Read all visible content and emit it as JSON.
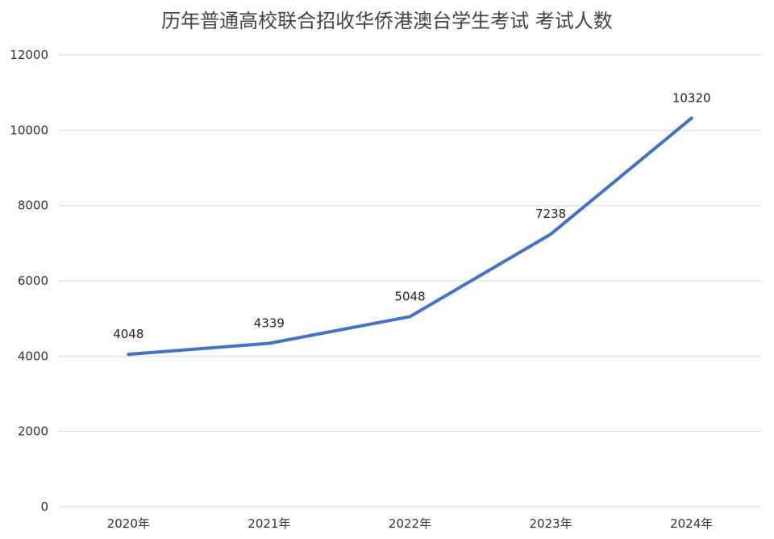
{
  "chart_data": {
    "type": "line",
    "title": "历年普通高校联合招收华侨港澳台学生考试 考试人数",
    "categories": [
      "2020年",
      "2021年",
      "2022年",
      "2023年",
      "2024年"
    ],
    "series": [
      {
        "name": "",
        "values": [
          4048,
          4339,
          5048,
          7238,
          10320
        ],
        "color": "#4472c4"
      }
    ],
    "data_labels": [
      "4048",
      "4339",
      "5048",
      "7238",
      "10320"
    ],
    "y_ticks": [
      "0",
      "2000",
      "4000",
      "6000",
      "8000",
      "10000",
      "12000"
    ],
    "ylim": [
      0,
      12000
    ],
    "grid": true,
    "legend": "none",
    "xlabel": "",
    "ylabel": ""
  },
  "colors": {
    "line": "#4472c4",
    "grid": "#d9d9d9",
    "text": "#333333"
  }
}
